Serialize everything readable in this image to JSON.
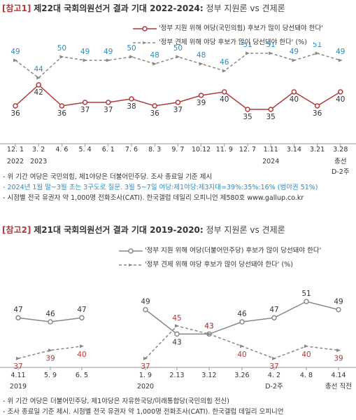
{
  "chart_data": [
    {
      "type": "line",
      "ref_label": "[참고1]",
      "title": "제22대 국회의원선거 결과 기대 2022-2024:",
      "subtitle": "정부 지원론 vs 견제론",
      "categories": [
        "12. 1",
        "3. 2",
        "4. 6",
        "5. 4",
        "6. 1",
        "7. 6",
        "8. 3",
        "9. 7",
        "10.12",
        "11. 9",
        "12. 7",
        "1.11",
        "3.14",
        "3.21",
        "3.28"
      ],
      "year_labels": [
        {
          "index": 0,
          "label": "2022"
        },
        {
          "index": 1,
          "label": "2023"
        },
        {
          "index": 11,
          "label": "2024"
        },
        {
          "index": 14,
          "label": "총선"
        }
      ],
      "extra_labels": [
        {
          "index": 14,
          "label": "D-2주"
        }
      ],
      "series": [
        {
          "name": "'정부 지원 위해 여당(국민의힘) 후보가 많이 당선돼야 한다'",
          "values": [
            36,
            42,
            36,
            37,
            37,
            38,
            36,
            37,
            39,
            40,
            35,
            35,
            40,
            36,
            40
          ],
          "color": "#b23a3a",
          "style": "solid"
        },
        {
          "name": "'정부 견제 위해 야당 후보가 많이 당선돼야 한다'",
          "unit": "(%)",
          "values": [
            49,
            44,
            50,
            49,
            49,
            50,
            48,
            50,
            48,
            46,
            51,
            51,
            49,
            51,
            49
          ],
          "color": "#2e8bc0",
          "style": "dashed"
        }
      ],
      "notes": [
        {
          "text": "- 위 기간 여당은 국민의힘, 제1야당은 더불어민주당. 조사 종료일 기준 제시",
          "color": "#333"
        },
        {
          "text": "- 2024년 1월 말~3월 초는 3구도로 질문. 3월 5~7일 여당:제1야당:제3지대=39%:35%:16% (범야권 51%)",
          "color": "#2e8bc0"
        },
        {
          "text": "- 시점별 전국 유권자 약 1,000명 전화조사(CATI). 한국갤럽 데일리 오피니언 제580호 www.gallup.co.kr",
          "color": "#333"
        }
      ]
    },
    {
      "type": "line",
      "ref_label": "[참고2]",
      "title": "제21대 국회의원선거 결과 기대 2019-2020:",
      "subtitle": "정부 지원론 vs 견제론",
      "categories": [
        "4.11",
        "5. 9",
        "6. 5",
        "1. 9",
        "2.13",
        "3.12",
        "3.26",
        "4. 2",
        "4. 8",
        "4.14"
      ],
      "year_labels": [
        {
          "index": 0,
          "label": "2019"
        },
        {
          "index": 3,
          "label": "2020"
        },
        {
          "index": 7,
          "label": "D-2주"
        },
        {
          "index": 9,
          "label": "총선 직전"
        }
      ],
      "series": [
        {
          "name": "'정부 지원 위해 여당(더불어민주당) 후보가 많이 당선돼야 한다'",
          "values": [
            47,
            46,
            47,
            49,
            43,
            43,
            46,
            47,
            51,
            49
          ],
          "color": "#888888",
          "style": "solid"
        },
        {
          "name": "'정부 견제 위해 야당 후보가 많이 당선돼야 한다'",
          "unit": "(%)",
          "values": [
            37,
            39,
            40,
            37,
            45,
            43,
            40,
            37,
            40,
            39
          ],
          "color": "#b23a3a",
          "style": "dashed"
        }
      ],
      "notes": [
        {
          "text": "- 위 기간 여당은 더불어민주당, 제1야당은 자유한국당/미래통합당(국민의힘 전신)",
          "color": "#333"
        },
        {
          "text": "- 조사 종료일 기준 제시. 시점별 전국 유권자 약 1,000명 전화조사(CATI). 한국갤럽 데일리 오피니언",
          "color": "#333"
        }
      ]
    }
  ]
}
